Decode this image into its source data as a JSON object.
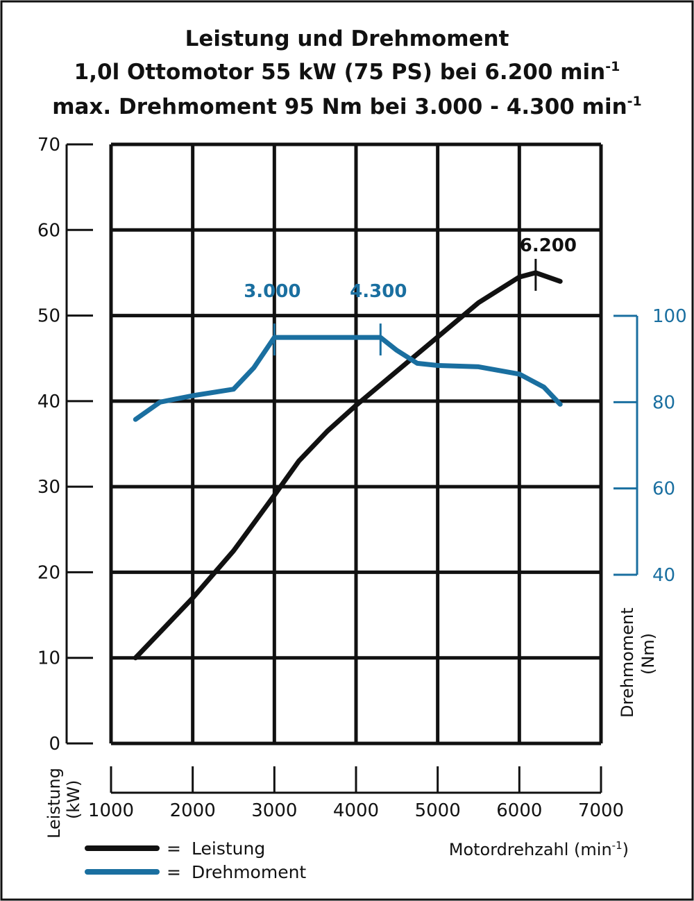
{
  "chart_data": {
    "type": "line",
    "title": [
      "Leistung und Drehmoment",
      "1,0l Ottomotor 55 kW (75 PS) bei 6.200 min",
      "max. Drehmoment 95 Nm bei 3.000 - 4.300 min"
    ],
    "title_superscript": "-1",
    "xlabel": "Motordrehzahl (min",
    "xlabel_superscript": "-1",
    "xlabel_close": ")",
    "ylabel_left": [
      "Leistung",
      "(kW)"
    ],
    "ylabel_right": [
      "Drehmoment",
      "(Nm)"
    ],
    "xlim": [
      1000,
      7000
    ],
    "ylim_left": [
      0,
      70
    ],
    "ylim_right": [
      40,
      100
    ],
    "x_ticks": [
      "1000",
      "2000",
      "3000",
      "4000",
      "5000",
      "6000",
      "7000"
    ],
    "y_ticks_left": [
      "0",
      "10",
      "20",
      "30",
      "40",
      "50",
      "60",
      "70"
    ],
    "y_ticks_right": [
      "40",
      "60",
      "80",
      "100"
    ],
    "grid": true,
    "series": [
      {
        "name": "Leistung",
        "axis": "left",
        "color": "#111111",
        "x": [
          1300,
          1700,
          2000,
          2500,
          3000,
          3300,
          3650,
          4000,
          4500,
          5000,
          5500,
          6000,
          6200,
          6500
        ],
        "y": [
          10,
          14,
          17,
          22.5,
          29,
          33,
          36.5,
          39.5,
          43.5,
          47.5,
          51.5,
          54.5,
          55,
          54
        ]
      },
      {
        "name": "Drehmoment",
        "axis": "right",
        "color": "#1a6fa0",
        "x": [
          1300,
          1600,
          2000,
          2500,
          2750,
          3000,
          3500,
          4000,
          4300,
          4500,
          4750,
          5000,
          5500,
          6000,
          6300,
          6500
        ],
        "y": [
          76,
          80,
          81.5,
          83,
          88,
          95,
          95,
          95,
          95,
          92,
          89,
          88.5,
          88.2,
          86.5,
          83.5,
          79.5
        ]
      }
    ],
    "annotations": [
      {
        "text": "3.000",
        "x": 3000,
        "series": "Drehmoment"
      },
      {
        "text": "4.300",
        "x": 4300,
        "series": "Drehmoment"
      },
      {
        "text": "6.200",
        "x": 6200,
        "series": "Leistung"
      }
    ],
    "legend": {
      "placement": "bottom-left",
      "items": [
        {
          "symbol": "=",
          "label": "Leistung",
          "color": "#111111"
        },
        {
          "symbol": "=",
          "label": "Drehmoment",
          "color": "#1a6fa0"
        }
      ]
    }
  }
}
